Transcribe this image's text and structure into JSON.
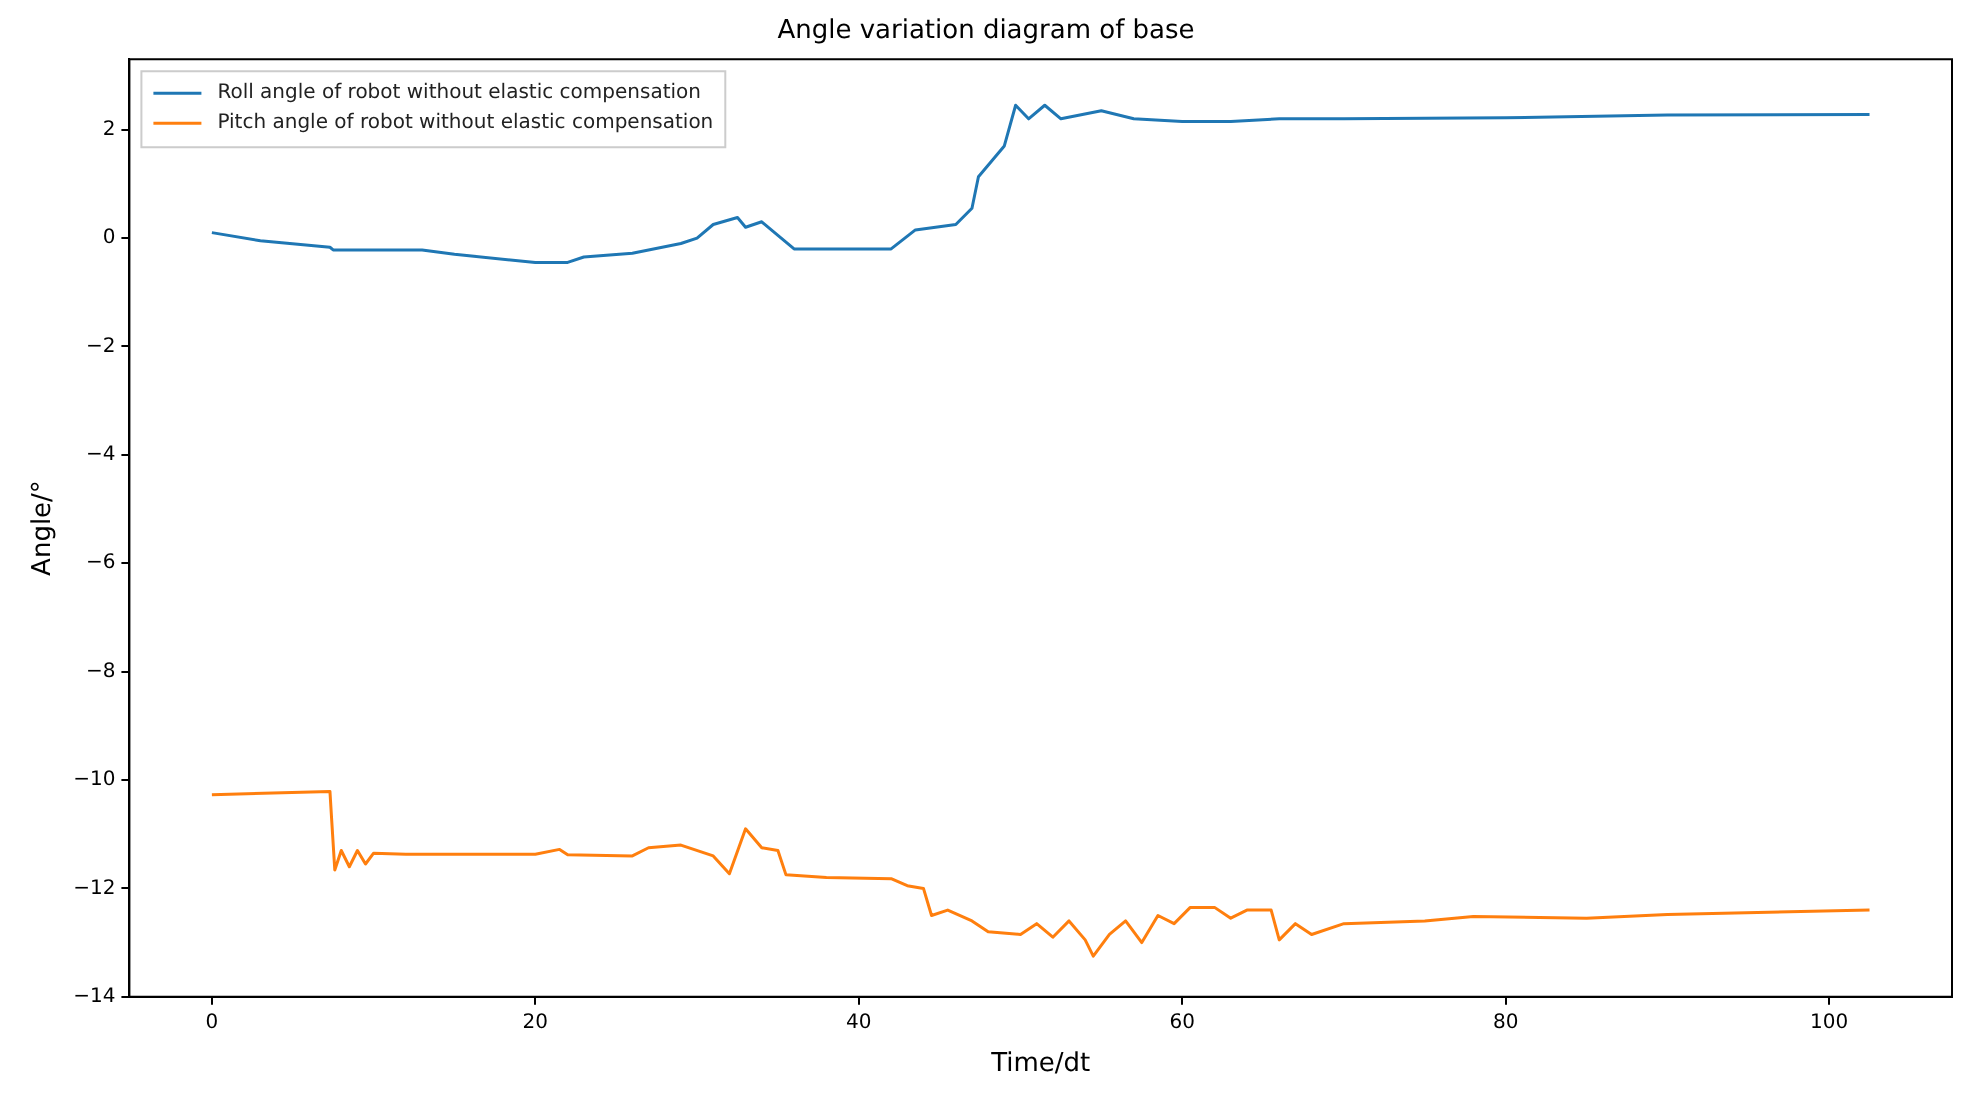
{
  "chart_data": {
    "type": "line",
    "title": "Angle variation diagram of base",
    "xlabel": "Time/dt",
    "ylabel": "Angle/°",
    "xlim": [
      -5.1,
      107.6
    ],
    "ylim": [
      -14.0,
      3.3
    ],
    "xticks": [
      0,
      20,
      40,
      60,
      80,
      100
    ],
    "yticks": [
      {
        "value": -14,
        "label": "−14"
      },
      {
        "value": -12,
        "label": "−12"
      },
      {
        "value": -10,
        "label": "−10"
      },
      {
        "value": -8,
        "label": "−8"
      },
      {
        "value": -6,
        "label": "−6"
      },
      {
        "value": -4,
        "label": "−4"
      },
      {
        "value": -2,
        "label": "−2"
      },
      0,
      2
    ],
    "grid": false,
    "legend": "top left",
    "marker": "none",
    "line_style": "solid",
    "series": [
      {
        "name": "Roll angle of robot without elastic compensation",
        "color": "#1f77b4",
        "x": [
          0,
          3,
          7.3,
          7.5,
          13,
          15,
          20,
          22,
          23,
          26,
          29,
          30,
          31,
          32.5,
          33,
          34,
          35,
          36,
          38,
          42,
          43.5,
          46,
          47,
          47.4,
          49,
          49.7,
          50.5,
          51.5,
          52.5,
          55,
          57,
          60,
          63,
          66,
          68,
          70,
          80,
          90,
          102.5
        ],
        "values": [
          0.1,
          -0.05,
          -0.17,
          -0.22,
          -0.22,
          -0.3,
          -0.45,
          -0.45,
          -0.35,
          -0.28,
          -0.1,
          0.0,
          0.25,
          0.38,
          0.2,
          0.3,
          0.05,
          -0.2,
          -0.2,
          -0.2,
          0.15,
          0.25,
          0.55,
          1.13,
          1.7,
          2.45,
          2.2,
          2.45,
          2.2,
          2.35,
          2.2,
          2.15,
          2.15,
          2.2,
          2.2,
          2.2,
          2.22,
          2.27,
          2.28
        ]
      },
      {
        "name": "Pitch angle of robot without elastic compensation",
        "color": "#ff7f0e",
        "x": [
          0,
          7.3,
          7.4,
          7.6,
          8,
          8.5,
          9,
          9.5,
          10,
          12,
          20,
          21.5,
          22,
          26,
          27,
          29,
          31,
          32,
          33,
          34,
          35,
          35.5,
          38,
          42,
          43,
          44,
          44.5,
          45.5,
          47,
          48,
          50,
          51,
          52,
          53,
          54,
          54.5,
          55.5,
          56.5,
          57.5,
          58.5,
          59.5,
          60.5,
          62,
          63,
          64,
          65.5,
          66,
          67,
          68,
          70,
          75,
          78,
          85,
          90,
          102.5
        ],
        "values": [
          -10.27,
          -10.21,
          -10.7,
          -11.66,
          -11.3,
          -11.6,
          -11.3,
          -11.55,
          -11.35,
          -11.37,
          -11.37,
          -11.28,
          -11.38,
          -11.4,
          -11.25,
          -11.2,
          -11.4,
          -11.73,
          -10.9,
          -11.25,
          -11.3,
          -11.75,
          -11.8,
          -11.82,
          -11.95,
          -12.0,
          -12.5,
          -12.4,
          -12.6,
          -12.8,
          -12.85,
          -12.65,
          -12.9,
          -12.6,
          -12.95,
          -13.25,
          -12.85,
          -12.6,
          -13.0,
          -12.5,
          -12.65,
          -12.35,
          -12.35,
          -12.55,
          -12.4,
          -12.4,
          -12.95,
          -12.65,
          -12.85,
          -12.65,
          -12.6,
          -12.52,
          -12.55,
          -12.48,
          -12.4
        ]
      }
    ]
  }
}
